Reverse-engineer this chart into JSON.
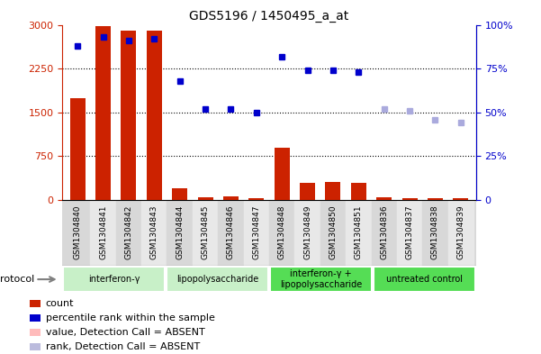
{
  "title": "GDS5196 / 1450495_a_at",
  "samples": [
    "GSM1304840",
    "GSM1304841",
    "GSM1304842",
    "GSM1304843",
    "GSM1304844",
    "GSM1304845",
    "GSM1304846",
    "GSM1304847",
    "GSM1304848",
    "GSM1304849",
    "GSM1304850",
    "GSM1304851",
    "GSM1304836",
    "GSM1304837",
    "GSM1304838",
    "GSM1304839"
  ],
  "count_values": [
    1750,
    2980,
    2900,
    2900,
    200,
    40,
    55,
    30,
    900,
    290,
    310,
    290,
    40,
    30,
    35,
    30
  ],
  "count_absent": [
    false,
    false,
    false,
    false,
    false,
    false,
    false,
    false,
    false,
    false,
    false,
    false,
    false,
    false,
    false,
    false
  ],
  "rank_values": [
    88,
    93,
    91,
    92,
    68,
    52,
    52,
    50,
    82,
    74,
    74,
    73,
    52,
    51,
    46,
    44
  ],
  "rank_absent": [
    false,
    false,
    false,
    false,
    false,
    false,
    false,
    false,
    false,
    false,
    false,
    false,
    true,
    true,
    true,
    true
  ],
  "groups": [
    {
      "label": "interferon-γ",
      "start": 0,
      "end": 4,
      "color": "#c8f0c8"
    },
    {
      "label": "lipopolysaccharide",
      "start": 4,
      "end": 8,
      "color": "#c8f0c8"
    },
    {
      "label": "interferon-γ +\nlipopolysaccharide",
      "start": 8,
      "end": 12,
      "color": "#70e870"
    },
    {
      "label": "untreated control",
      "start": 12,
      "end": 16,
      "color": "#70e870"
    }
  ],
  "left_ylim": [
    0,
    3000
  ],
  "right_ylim": [
    0,
    100
  ],
  "left_yticks": [
    0,
    750,
    1500,
    2250,
    3000
  ],
  "right_yticks": [
    0,
    25,
    50,
    75,
    100
  ],
  "right_yticklabels": [
    "0",
    "25%",
    "50%",
    "75%",
    "100%"
  ],
  "bar_color": "#CC2200",
  "bar_absent_color": "#FFAAAA",
  "rank_color": "#0000CC",
  "rank_absent_color": "#AAAADD",
  "xtick_bg_color": "#D8D8D8",
  "legend_items": [
    {
      "color": "#CC2200",
      "label": "count"
    },
    {
      "color": "#0000CC",
      "label": "percentile rank within the sample"
    },
    {
      "color": "#FFBBBB",
      "label": "value, Detection Call = ABSENT"
    },
    {
      "color": "#BBBBDD",
      "label": "rank, Detection Call = ABSENT"
    }
  ]
}
